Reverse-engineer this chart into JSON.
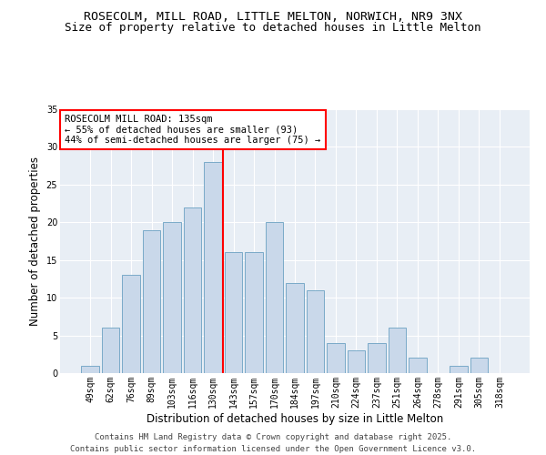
{
  "title": "ROSECOLM, MILL ROAD, LITTLE MELTON, NORWICH, NR9 3NX",
  "subtitle": "Size of property relative to detached houses in Little Melton",
  "xlabel": "Distribution of detached houses by size in Little Melton",
  "ylabel": "Number of detached properties",
  "bar_labels": [
    "49sqm",
    "62sqm",
    "76sqm",
    "89sqm",
    "103sqm",
    "116sqm",
    "130sqm",
    "143sqm",
    "157sqm",
    "170sqm",
    "184sqm",
    "197sqm",
    "210sqm",
    "224sqm",
    "237sqm",
    "251sqm",
    "264sqm",
    "278sqm",
    "291sqm",
    "305sqm",
    "318sqm"
  ],
  "bar_values": [
    1,
    6,
    13,
    19,
    20,
    22,
    28,
    16,
    16,
    20,
    12,
    11,
    4,
    3,
    4,
    6,
    2,
    0,
    1,
    2,
    0
  ],
  "bar_color": "#c9d8ea",
  "bar_edge_color": "#7aaac8",
  "vline_color": "red",
  "vline_pos": 7.0,
  "annotation_title": "ROSECOLM MILL ROAD: 135sqm",
  "annotation_line1": "← 55% of detached houses are smaller (93)",
  "annotation_line2": "44% of semi-detached houses are larger (75) →",
  "annotation_box_color": "white",
  "annotation_box_edge": "red",
  "ylim": [
    0,
    35
  ],
  "yticks": [
    0,
    5,
    10,
    15,
    20,
    25,
    30,
    35
  ],
  "bg_color": "#e8eef5",
  "footer1": "Contains HM Land Registry data © Crown copyright and database right 2025.",
  "footer2": "Contains public sector information licensed under the Open Government Licence v3.0.",
  "title_fontsize": 9.5,
  "subtitle_fontsize": 9,
  "axis_label_fontsize": 8.5,
  "tick_fontsize": 7,
  "annotation_fontsize": 7.5,
  "footer_fontsize": 6.5
}
